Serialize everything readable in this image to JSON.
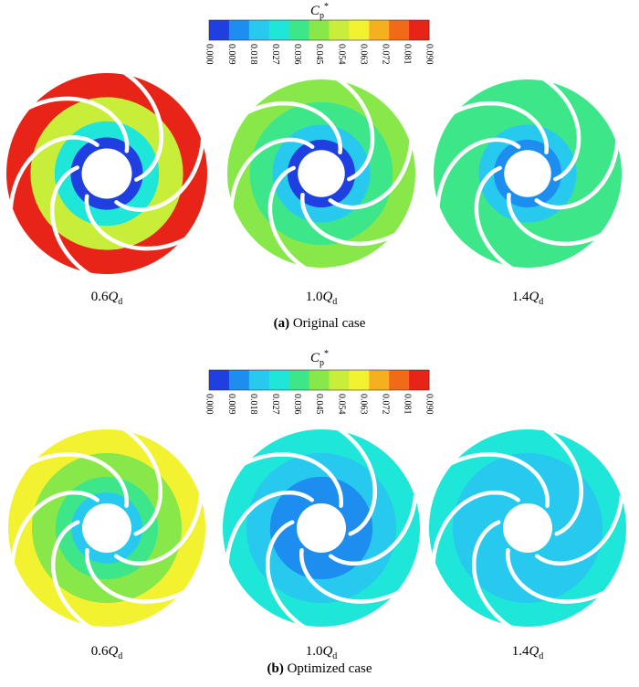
{
  "colorbar": {
    "symbol": "C",
    "symbol_sub": "p",
    "symbol_sup": "*",
    "ticks": [
      "0.000",
      "0.009",
      "0.018",
      "0.027",
      "0.036",
      "0.045",
      "0.054",
      "0.063",
      "0.072",
      "0.081",
      "0.090"
    ],
    "colors": [
      "#1f3fe0",
      "#1d8ef0",
      "#27c9ee",
      "#1ee6d8",
      "#3ee68a",
      "#88e84a",
      "#c8ee3a",
      "#f2f230",
      "#f5b020",
      "#f06a18",
      "#e82418"
    ]
  },
  "panels": [
    {
      "caption_bold": "(a)",
      "caption_text": "Original case",
      "impellers": [
        {
          "label_num": "0.6",
          "label_var": "Q",
          "label_sub": "d",
          "outer_color": "#e82418",
          "mid_color": "#c8ee3a",
          "inner_color": "#1ee6d8",
          "hub_color": "#1f3fe0"
        },
        {
          "label_num": "1.0",
          "label_var": "Q",
          "label_sub": "d",
          "outer_color": "#88e84a",
          "mid_color": "#3ee68a",
          "inner_color": "#27c9ee",
          "hub_color": "#1f3fe0"
        },
        {
          "label_num": "1.4",
          "label_var": "Q",
          "label_sub": "d",
          "outer_color": "#3ee68a",
          "mid_color": "#3ee68a",
          "inner_color": "#27c9ee",
          "hub_color": "#1d8ef0"
        }
      ]
    },
    {
      "caption_bold": "(b)",
      "caption_text": "Optimized case",
      "impellers": [
        {
          "label_num": "0.6",
          "label_var": "Q",
          "label_sub": "d",
          "outer_color": "#f2f230",
          "mid_color": "#88e84a",
          "inner_color": "#3ee68a",
          "hub_color": "#27c9ee"
        },
        {
          "label_num": "1.0",
          "label_var": "Q",
          "label_sub": "d",
          "outer_color": "#1ee6d8",
          "mid_color": "#27c9ee",
          "inner_color": "#1d8ef0",
          "hub_color": "#1d8ef0"
        },
        {
          "label_num": "1.4",
          "label_var": "Q",
          "label_sub": "d",
          "outer_color": "#1ee6d8",
          "mid_color": "#27c9ee",
          "inner_color": "#27c9ee",
          "hub_color": "#27c9ee"
        }
      ]
    }
  ]
}
